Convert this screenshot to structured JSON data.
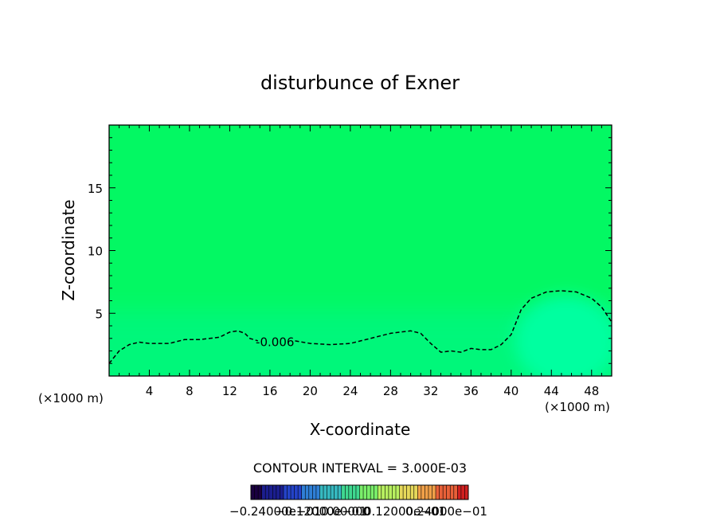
{
  "chart_data": {
    "type": "contour",
    "title": "disturbunce of Exner",
    "xlabel": "X-coordinate",
    "ylabel": "Z-coordinate",
    "x_unit_left": "(×1000 m)",
    "x_unit_right": "(×1000 m)",
    "xlim": [
      0,
      50
    ],
    "ylim": [
      0,
      20
    ],
    "x_ticks": [
      4,
      8,
      12,
      16,
      20,
      24,
      28,
      32,
      36,
      40,
      44,
      48
    ],
    "y_ticks": [
      5,
      10,
      15
    ],
    "fill_colors": {
      "background": "#03f863",
      "lower_band": "#06f77a",
      "blob": "#00ffa0"
    },
    "contour_lines": [
      {
        "label": "-0.006",
        "level": -0.006,
        "style": "dashed",
        "label_at": [
          16.5,
          2.7
        ],
        "points": [
          [
            0,
            1.0
          ],
          [
            1,
            2.0
          ],
          [
            2,
            2.5
          ],
          [
            3,
            2.7
          ],
          [
            4,
            2.6
          ],
          [
            5,
            2.6
          ],
          [
            6,
            2.6
          ],
          [
            7.5,
            2.9
          ],
          [
            9,
            2.9
          ],
          [
            10,
            3.0
          ],
          [
            11,
            3.1
          ],
          [
            12,
            3.5
          ],
          [
            12.8,
            3.6
          ],
          [
            13.5,
            3.4
          ],
          [
            14,
            3.0
          ],
          [
            14.8,
            2.8
          ],
          [
            18.5,
            2.8
          ],
          [
            20,
            2.6
          ],
          [
            22,
            2.5
          ],
          [
            24,
            2.6
          ],
          [
            26,
            3.0
          ],
          [
            28,
            3.4
          ],
          [
            30,
            3.6
          ],
          [
            31,
            3.4
          ],
          [
            32,
            2.6
          ],
          [
            33,
            1.9
          ],
          [
            34,
            2.0
          ],
          [
            35,
            1.9
          ],
          [
            36,
            2.2
          ],
          [
            37,
            2.1
          ],
          [
            38,
            2.1
          ],
          [
            39,
            2.5
          ],
          [
            40,
            3.3
          ],
          [
            40.5,
            4.3
          ],
          [
            41,
            5.3
          ],
          [
            42,
            6.2
          ],
          [
            43.5,
            6.7
          ],
          [
            45,
            6.8
          ],
          [
            46.5,
            6.7
          ],
          [
            48,
            6.2
          ],
          [
            49,
            5.5
          ],
          [
            50,
            4.3
          ]
        ]
      }
    ],
    "contour_interval_text": "CONTOUR INTERVAL = 3.000E-03",
    "colorbar": {
      "colors": [
        "#1a0040",
        "#1b1e8f",
        "#2443c8",
        "#2f7fd6",
        "#36b8c0",
        "#3fd890",
        "#7aee6a",
        "#b8f060",
        "#e6d85a",
        "#f0a048",
        "#e86038",
        "#d02020"
      ],
      "labels_text": "−0.24000e−01",
      "labels_text_2": "−0.12000e−01",
      "labels_text_3": "0.00000",
      "labels_text_4": "0.12000e−01",
      "labels_text_5": "0.24000e−01"
    }
  }
}
